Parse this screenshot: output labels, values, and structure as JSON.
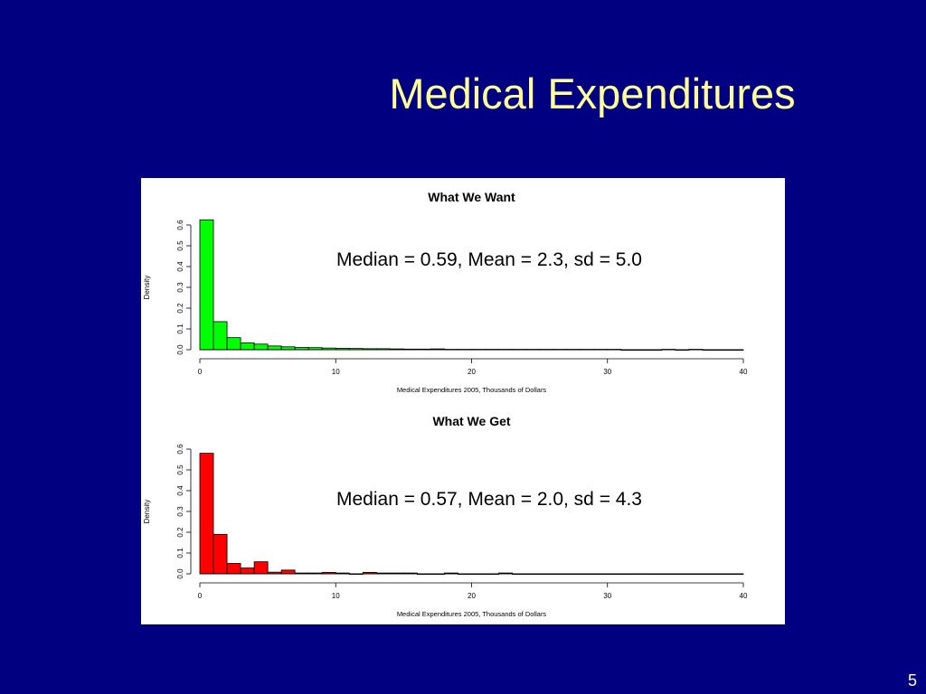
{
  "slide": {
    "title": "Medical Expenditures",
    "page_number": "5",
    "background_color": "#000080",
    "title_color": "#FFFF99"
  },
  "chart_data": [
    {
      "type": "bar",
      "subtype": "histogram",
      "title": "What We Want",
      "xlabel": "Medical Expenditures 2005, Thousands of Dollars",
      "ylabel": "Density",
      "annotation": "Median = 0.59, Mean = 2.3, sd = 5.0",
      "color": "#00FF00",
      "bin_width": 1,
      "xlim": [
        0,
        40
      ],
      "ylim": [
        0,
        0.6
      ],
      "x_ticks": [
        "0",
        "10",
        "20",
        "30",
        "40"
      ],
      "y_ticks": [
        "0.0",
        "0.1",
        "0.2",
        "0.3",
        "0.4",
        "0.5",
        "0.6"
      ],
      "bin_starts": [
        0,
        1,
        2,
        3,
        4,
        5,
        6,
        7,
        8,
        9,
        10,
        11,
        12,
        13,
        14,
        15,
        16,
        17,
        18,
        19,
        20,
        21,
        22,
        23,
        24,
        25,
        26,
        27,
        28,
        29,
        30,
        31,
        32,
        33,
        34,
        35,
        36,
        37,
        38,
        39
      ],
      "values": [
        0.625,
        0.135,
        0.058,
        0.033,
        0.027,
        0.018,
        0.014,
        0.011,
        0.01,
        0.008,
        0.007,
        0.006,
        0.005,
        0.005,
        0.004,
        0.003,
        0.003,
        0.004,
        0.002,
        0.002,
        0.002,
        0.002,
        0.002,
        0.002,
        0.002,
        0.002,
        0.002,
        0.002,
        0.002,
        0.002,
        0.002,
        0,
        0,
        0,
        0.002,
        0,
        0.002,
        0,
        0,
        0
      ]
    },
    {
      "type": "bar",
      "subtype": "histogram",
      "title": "What We Get",
      "xlabel": "Medical Expenditures 2005, Thousands of Dollars",
      "ylabel": "Density",
      "annotation": "Median = 0.57, Mean = 2.0, sd = 4.3",
      "color": "#FF0000",
      "bin_width": 1,
      "xlim": [
        0,
        40
      ],
      "ylim": [
        0,
        0.6
      ],
      "x_ticks": [
        "0",
        "10",
        "20",
        "30",
        "40"
      ],
      "y_ticks": [
        "0.0",
        "0.1",
        "0.2",
        "0.3",
        "0.4",
        "0.5",
        "0.6"
      ],
      "bin_starts": [
        0,
        1,
        2,
        3,
        4,
        5,
        6,
        7,
        8,
        9,
        10,
        11,
        12,
        13,
        14,
        15,
        16,
        17,
        18,
        19,
        20,
        21,
        22,
        23,
        24,
        25,
        26,
        27,
        28,
        29,
        30,
        31,
        32,
        33,
        34,
        35,
        36,
        37,
        38,
        39
      ],
      "values": [
        0.58,
        0.19,
        0.05,
        0.028,
        0.058,
        0.008,
        0.018,
        0.004,
        0.004,
        0.007,
        0.004,
        0,
        0.007,
        0.004,
        0.004,
        0.004,
        0,
        0,
        0.004,
        0,
        0,
        0,
        0.004,
        0,
        0,
        0,
        0,
        0,
        0,
        0,
        0,
        0,
        0,
        0,
        0,
        0,
        0,
        0,
        0,
        0
      ]
    }
  ]
}
